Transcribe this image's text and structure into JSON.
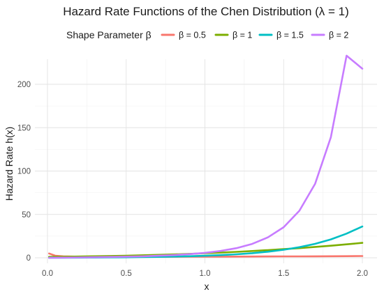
{
  "chart_data": {
    "type": "line",
    "title": "Hazard Rate Functions of the Chen Distribution (λ = 1)",
    "xlabel": "x",
    "ylabel": "Hazard Rate h(x)",
    "xlim": [
      0,
      2
    ],
    "ylim": [
      0,
      220
    ],
    "x_ticks": [
      "0.0",
      "0.5",
      "1.0",
      "1.5",
      "2.0"
    ],
    "y_ticks": [
      "0",
      "50",
      "100",
      "150",
      "200"
    ],
    "grid": true,
    "legend": {
      "title": "Shape Parameter β",
      "position": "top"
    },
    "x": [
      0.01,
      0.05,
      0.1,
      0.2,
      0.3,
      0.4,
      0.5,
      0.6,
      0.7,
      0.8,
      0.9,
      1.0,
      1.1,
      1.2,
      1.3,
      1.4,
      1.5,
      1.6,
      1.7,
      1.8,
      1.9,
      2.0
    ],
    "series": [
      {
        "name": "β = 0.5",
        "color": "#F8766D",
        "values": [
          5.0,
          2.29,
          1.66,
          1.25,
          1.1,
          1.04,
          1.03,
          1.05,
          1.09,
          1.13,
          1.18,
          1.24,
          1.3,
          1.36,
          1.43,
          1.5,
          1.57,
          1.64,
          1.72,
          1.8,
          1.88,
          1.97
        ]
      },
      {
        "name": "β = 1",
        "color": "#7CAE00",
        "values": [
          1.02,
          1.1,
          1.21,
          1.46,
          1.74,
          2.06,
          2.43,
          2.86,
          3.34,
          3.89,
          4.51,
          5.2,
          5.97,
          6.83,
          7.77,
          8.8,
          9.93,
          11.1,
          12.5,
          13.9,
          15.5,
          17.2
        ]
      },
      {
        "name": "β = 1.5",
        "color": "#00BFC4",
        "values": [
          0.0015,
          0.0168,
          0.0475,
          0.136,
          0.252,
          0.393,
          0.566,
          0.776,
          1.04,
          1.37,
          1.8,
          2.35,
          3.08,
          4.04,
          5.31,
          7.0,
          9.23,
          12.2,
          16.1,
          21.2,
          27.9,
          36.1
        ]
      },
      {
        "name": "β = 2",
        "color": "#C77CFF",
        "values": [
          0.02,
          0.1,
          0.2,
          0.42,
          0.66,
          0.94,
          1.28,
          1.72,
          2.3,
          3.08,
          4.16,
          5.67,
          7.87,
          11.1,
          16.0,
          23.5,
          35.3,
          54.2,
          85.2,
          139.0,
          233.0,
          218.0
        ]
      }
    ]
  }
}
